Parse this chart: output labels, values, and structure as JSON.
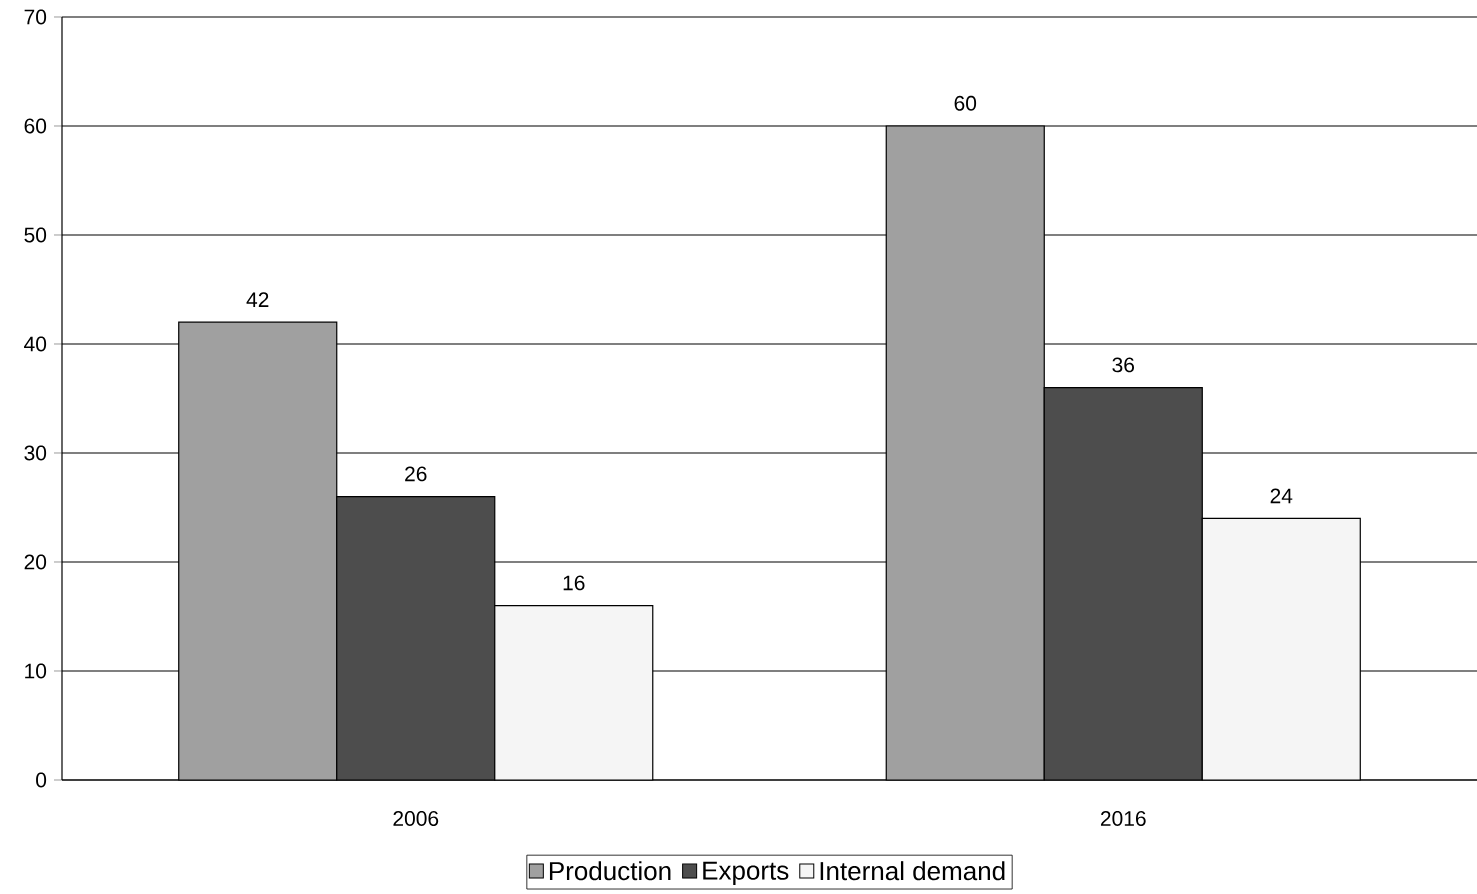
{
  "chart_data": {
    "type": "bar",
    "categories": [
      "2006",
      "2016"
    ],
    "series": [
      {
        "name": "Production",
        "color": "#a0a0a0",
        "values": [
          42,
          60
        ]
      },
      {
        "name": "Exports",
        "color": "#4d4d4d",
        "values": [
          26,
          36
        ]
      },
      {
        "name": "Internal demand",
        "color": "#f5f5f5",
        "values": [
          16,
          24
        ]
      }
    ],
    "ylim": [
      0,
      70
    ],
    "yticks": [
      0,
      10,
      20,
      30,
      40,
      50,
      60,
      70
    ],
    "grid": "y",
    "legend": "bottom",
    "data_labels": true
  }
}
